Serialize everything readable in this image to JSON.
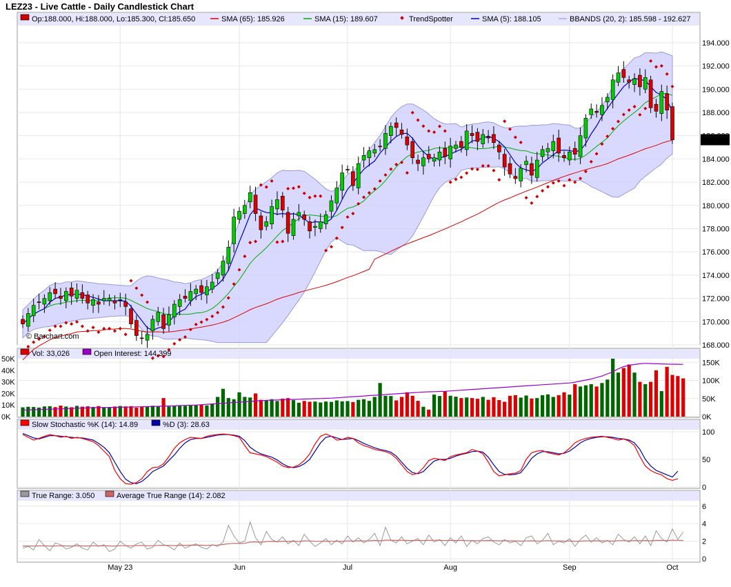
{
  "title": "LEZ23 - Live Cattle - Daily Candlestick Chart",
  "watermark": "© Barchart.com",
  "colors": {
    "up": "#00cc00",
    "down": "#dd0000",
    "sma65": "#e00000",
    "sma15": "#00aa00",
    "sma5": "#0000cc",
    "trend": "#cc0000",
    "band": "#ccccff",
    "volume_up": "#006600",
    "volume_down": "#dd0000",
    "oi": "#9900cc",
    "k": "#ff0000",
    "d": "#0000aa",
    "tr": "#999999",
    "atr": "#cc6666",
    "legend_bg": "#e6e6ff"
  },
  "legend": {
    "price": [
      {
        "swatch": "#cc0000",
        "text": "Op:188.000, Hi:188.000, Lo:185.300, Cl:185.650"
      },
      {
        "swatch": "#e00000",
        "text": "SMA (65): 185.926",
        "line": true
      },
      {
        "swatch": "#00aa00",
        "text": "SMA (15): 189.607",
        "line": true
      },
      {
        "swatch": "#cc0000",
        "text": "TrendSpotter",
        "diamond": true
      },
      {
        "swatch": "#0000cc",
        "text": "SMA (5): 188.105",
        "line": true
      },
      {
        "swatch": "#aaaaee",
        "text": "BBANDS (20, 2): 185.598 - 192.627",
        "line": true
      }
    ],
    "volume": [
      {
        "swatch": "#dd0000",
        "text": "Vol: 33,026"
      },
      {
        "swatch": "#9900cc",
        "text": "Open Interest: 144,399"
      }
    ],
    "stoch": [
      {
        "swatch": "#ff0000",
        "text": "Slow Stochastic %K (14): 14.89"
      },
      {
        "swatch": "#0000aa",
        "text": "%D (3): 28.63"
      }
    ],
    "tr": [
      {
        "swatch": "#999999",
        "text": "True Range: 3.050"
      },
      {
        "swatch": "#cc6666",
        "text": "Average True Range (14): 2.082"
      }
    ]
  },
  "last_price_label": "185.650",
  "chart_data": [
    {
      "type": "candlestick",
      "panel": "price",
      "ylim": [
        168,
        195
      ],
      "ticks": [
        "194.000",
        "192.000",
        "190.000",
        "188.000",
        "186.000",
        "184.000",
        "182.000",
        "180.000",
        "178.000",
        "176.000",
        "174.000",
        "172.000",
        "170.000",
        "168.000"
      ],
      "x_labels": [
        "May 23",
        "Jun",
        "Jul",
        "Aug",
        "Sep",
        "Oct"
      ],
      "x_label_days": [
        18,
        40,
        60,
        79,
        101,
        120
      ],
      "closes": [
        169.8,
        170.7,
        171.4,
        171.7,
        172.0,
        172.5,
        172.4,
        172.0,
        172.6,
        172.2,
        172.7,
        172.0,
        171.6,
        171.9,
        171.5,
        172.0,
        172.0,
        171.6,
        171.9,
        171.3,
        169.8,
        168.8,
        168.6,
        168.9,
        170.2,
        170.8,
        169.4,
        170.6,
        171.5,
        171.9,
        172.0,
        172.6,
        172.8,
        172.5,
        173.0,
        173.4,
        174.2,
        175.2,
        176.4,
        179.0,
        179.5,
        180.0,
        181.1,
        179.3,
        177.9,
        178.6,
        179.9,
        180.5,
        179.6,
        177.6,
        178.8,
        179.4,
        178.8,
        177.8,
        178.2,
        178.6,
        179.2,
        180.4,
        181.5,
        182.8,
        183.1,
        181.7,
        183.6,
        184.3,
        184.7,
        184.8,
        185.1,
        186.2,
        186.8,
        186.7,
        186.1,
        185.2,
        184.1,
        183.6,
        184.1,
        184.0,
        184.1,
        184.6,
        184.2,
        185.1,
        185.2,
        185.0,
        186.4,
        186.0,
        185.5,
        186.1,
        185.8,
        185.4,
        184.6,
        183.3,
        182.7,
        182.3,
        183.2,
        183.8,
        182.6,
        183.9,
        184.8,
        184.9,
        185.5,
        184.5,
        184.1,
        184.6,
        184.4,
        186.0,
        187.5,
        188.3,
        188.0,
        188.6,
        189.3,
        190.8,
        191.4,
        191.0,
        190.6,
        190.9,
        190.2,
        191.0,
        188.4,
        188.1,
        189.8,
        188.2,
        185.65
      ]
    },
    {
      "type": "bar",
      "panel": "volume",
      "ylim": [
        0,
        50000
      ],
      "left_ticks": [
        "50K",
        "40K",
        "30K",
        "20K",
        "10K",
        "0K"
      ],
      "right_ticks": [
        "150K",
        "100K",
        "50K",
        "0K"
      ],
      "series": [
        {
          "name": "Vol",
          "values": [
            8000,
            8500,
            8300,
            7800,
            8800,
            9000,
            8200,
            9500,
            8700,
            8100,
            9300,
            8600,
            8900,
            8400,
            9100,
            8200,
            8000,
            8700,
            9200,
            8800,
            9000,
            7800,
            8600,
            9000,
            9400,
            9100,
            16000,
            8800,
            9200,
            9600,
            9300,
            10000,
            9800,
            10200,
            9700,
            11000,
            17000,
            24000,
            16000,
            15000,
            21000,
            17000,
            16500,
            20000,
            14500,
            14000,
            15000,
            13500,
            15500,
            16000,
            14200,
            12000,
            13500,
            12800,
            13000,
            12200,
            13000,
            12700,
            14000,
            13200,
            13400,
            12600,
            14500,
            15000,
            13600,
            17000,
            29000,
            18000,
            17800,
            14000,
            17000,
            21000,
            18000,
            13600,
            8500,
            6000,
            19000,
            17800,
            22000,
            18000,
            17200,
            16000,
            16500,
            16000,
            15400,
            17000,
            14500,
            16800,
            14300,
            12800,
            18000,
            18500,
            16400,
            18200,
            15600,
            16000,
            18500,
            19200,
            17000,
            18500,
            21000,
            19000,
            28000,
            26000,
            27000,
            28000,
            26000,
            29000,
            32000,
            52000,
            38000,
            42000,
            45000,
            38000,
            30000,
            28000,
            30000,
            40000,
            22000,
            43000,
            36000,
            35000,
            33026
          ]
        }
      ],
      "open_interest": [
        18000,
        18500,
        19000,
        19500,
        20000,
        20500,
        21000,
        21500,
        22000,
        22500,
        23000,
        23500,
        24000,
        24500,
        25000,
        25200,
        25500,
        25800,
        26000,
        26300,
        26500,
        27000,
        27300,
        27600,
        28000,
        28500,
        29000,
        29500,
        30000,
        30500,
        31000,
        31500,
        32000,
        33000,
        34000,
        35000,
        36000,
        37000,
        38000,
        39000,
        40000,
        41000,
        42000,
        43000,
        44000,
        45000,
        45500,
        46000,
        46500,
        47000,
        47500,
        48000,
        48500,
        49000,
        49500,
        50000,
        50500,
        51000,
        52000,
        53000,
        54000,
        55000,
        56000,
        57000,
        58000,
        59000,
        60000,
        61000,
        62000,
        63000,
        64000,
        65000,
        66000,
        67000,
        68000,
        68500,
        69000,
        69500,
        70000,
        71000,
        72000,
        73000,
        74000,
        75000,
        76000,
        77000,
        78000,
        79000,
        80000,
        81000,
        82000,
        83000,
        84000,
        85000,
        86000,
        87000,
        88000,
        89000,
        90000,
        91000,
        92000,
        93000,
        95000,
        98000,
        101000,
        104000,
        108000,
        112000,
        118000,
        124000,
        132000,
        138000,
        142000,
        144000,
        146000,
        147000,
        146500,
        146000,
        145500,
        145000,
        144800,
        144600,
        144399
      ]
    },
    {
      "type": "line",
      "panel": "stochastic",
      "ylim": [
        0,
        100
      ],
      "ticks": [
        "100",
        "50",
        "0"
      ],
      "series": [
        {
          "name": "Slow Stochastic %K (14)",
          "values": [
            95,
            90,
            85,
            88,
            92,
            95,
            93,
            90,
            92,
            88,
            90,
            88,
            85,
            82,
            75,
            65,
            55,
            30,
            15,
            6,
            5,
            8,
            15,
            28,
            35,
            36,
            42,
            55,
            70,
            80,
            86,
            90,
            89,
            88,
            92,
            94,
            95,
            96,
            95,
            93,
            90,
            75,
            62,
            60,
            58,
            55,
            50,
            45,
            38,
            35,
            36,
            40,
            48,
            60,
            78,
            92,
            96,
            92,
            85,
            86,
            90,
            88,
            80,
            75,
            72,
            68,
            66,
            64,
            60,
            52,
            40,
            28,
            22,
            25,
            35,
            48,
            52,
            50,
            48,
            55,
            58,
            60,
            62,
            68,
            65,
            60,
            45,
            28,
            20,
            22,
            24,
            25,
            30,
            50,
            62,
            65,
            66,
            62,
            60,
            58,
            62,
            70,
            80,
            85,
            88,
            90,
            91,
            92,
            90,
            88,
            85,
            87,
            83,
            75,
            55,
            38,
            30,
            25,
            22,
            15,
            12,
            14.89
          ]
        },
        {
          "name": "%D (3)",
          "values": [
            97,
            93,
            89,
            87,
            90,
            93,
            93,
            92,
            91,
            90,
            89,
            89,
            87,
            85,
            79,
            72,
            62,
            45,
            28,
            14,
            8,
            6,
            10,
            18,
            28,
            33,
            38,
            48,
            58,
            70,
            80,
            86,
            88,
            88,
            90,
            92,
            94,
            95,
            95,
            94,
            92,
            84,
            72,
            65,
            60,
            57,
            54,
            49,
            42,
            37,
            35,
            37,
            42,
            50,
            65,
            80,
            90,
            92,
            89,
            86,
            87,
            88,
            84,
            79,
            75,
            71,
            68,
            66,
            63,
            56,
            45,
            34,
            26,
            24,
            28,
            38,
            47,
            50,
            50,
            52,
            56,
            59,
            61,
            64,
            65,
            63,
            54,
            40,
            28,
            23,
            22,
            23,
            26,
            38,
            52,
            60,
            64,
            64,
            62,
            60,
            61,
            65,
            72,
            80,
            85,
            88,
            90,
            91,
            91,
            90,
            88,
            87,
            85,
            80,
            68,
            50,
            38,
            30,
            26,
            22,
            18,
            28.63
          ]
        }
      ]
    },
    {
      "type": "line",
      "panel": "true_range",
      "ylim": [
        0,
        7
      ],
      "ticks": [
        "6",
        "4",
        "2",
        "0"
      ],
      "series": [
        {
          "name": "True Range",
          "values": [
            1.2,
            1.4,
            1.0,
            2.2,
            1.5,
            0.9,
            1.8,
            1.6,
            1.1,
            1.3,
            1.7,
            1.2,
            1.0,
            1.9,
            1.4,
            1.6,
            0.8,
            1.1,
            2.0,
            1.5,
            1.2,
            1.7,
            1.9,
            1.1,
            1.3,
            2.1,
            1.6,
            1.4,
            1.0,
            1.8,
            1.2,
            1.5,
            1.7,
            1.3,
            1.1,
            1.6,
            1.4,
            1.9,
            3.8,
            2.6,
            1.8,
            2.0,
            4.2,
            2.4,
            1.6,
            3.1,
            2.2,
            1.9,
            2.5,
            1.7,
            2.1,
            1.5,
            2.8,
            2.0,
            1.4,
            1.8,
            2.3,
            1.6,
            2.1,
            1.7,
            2.6,
            1.9,
            2.4,
            1.8,
            2.2,
            2.9,
            1.5,
            3.6,
            2.1,
            1.8,
            2.5,
            1.7,
            2.0,
            2.3,
            1.6,
            2.7,
            1.9,
            2.2,
            1.5,
            2.4,
            1.8,
            2.6,
            1.4,
            2.1,
            1.7,
            2.3,
            2.5,
            1.9,
            1.6,
            2.2,
            1.8,
            2.0,
            1.5,
            2.4,
            2.6,
            1.7,
            2.1,
            2.9,
            1.6,
            2.0,
            1.8,
            2.3,
            1.4,
            2.2,
            2.7,
            1.9,
            2.4,
            1.8,
            2.1,
            1.6,
            2.8,
            2.2,
            1.9,
            2.5,
            1.7,
            2.6,
            1.5,
            3.2,
            2.3,
            1.9,
            3.4,
            2.2,
            3.05
          ]
        },
        {
          "name": "Average True Range (14)",
          "values": [
            1.45,
            1.45,
            1.44,
            1.46,
            1.47,
            1.45,
            1.46,
            1.48,
            1.46,
            1.45,
            1.47,
            1.46,
            1.45,
            1.48,
            1.47,
            1.48,
            1.46,
            1.45,
            1.48,
            1.48,
            1.47,
            1.5,
            1.51,
            1.49,
            1.48,
            1.52,
            1.53,
            1.52,
            1.5,
            1.54,
            1.53,
            1.54,
            1.55,
            1.54,
            1.52,
            1.55,
            1.56,
            1.62,
            1.72,
            1.76,
            1.74,
            1.76,
            1.9,
            1.92,
            1.88,
            1.95,
            1.98,
            1.96,
            2.0,
            1.98,
            2.0,
            1.97,
            2.04,
            2.03,
            1.99,
            1.99,
            2.01,
            1.99,
            2.0,
            1.98,
            2.03,
            2.02,
            2.05,
            2.03,
            2.04,
            2.09,
            2.05,
            2.12,
            2.12,
            2.09,
            2.11,
            2.08,
            2.08,
            2.1,
            2.07,
            2.11,
            2.1,
            2.11,
            2.07,
            2.1,
            2.08,
            2.1,
            2.06,
            2.06,
            2.05,
            2.06,
            2.08,
            2.06,
            2.04,
            2.06,
            2.04,
            2.04,
            2.01,
            2.03,
            2.05,
            2.02,
            2.03,
            2.06,
            2.03,
            2.03,
            2.01,
            2.03,
            2.0,
            2.01,
            2.04,
            2.03,
            2.05,
            2.03,
            2.04,
            2.01,
            2.06,
            2.06,
            2.04,
            2.07,
            2.05,
            2.08,
            2.04,
            2.09,
            2.09,
            2.07,
            2.12,
            2.1,
            2.082
          ]
        }
      ]
    }
  ]
}
